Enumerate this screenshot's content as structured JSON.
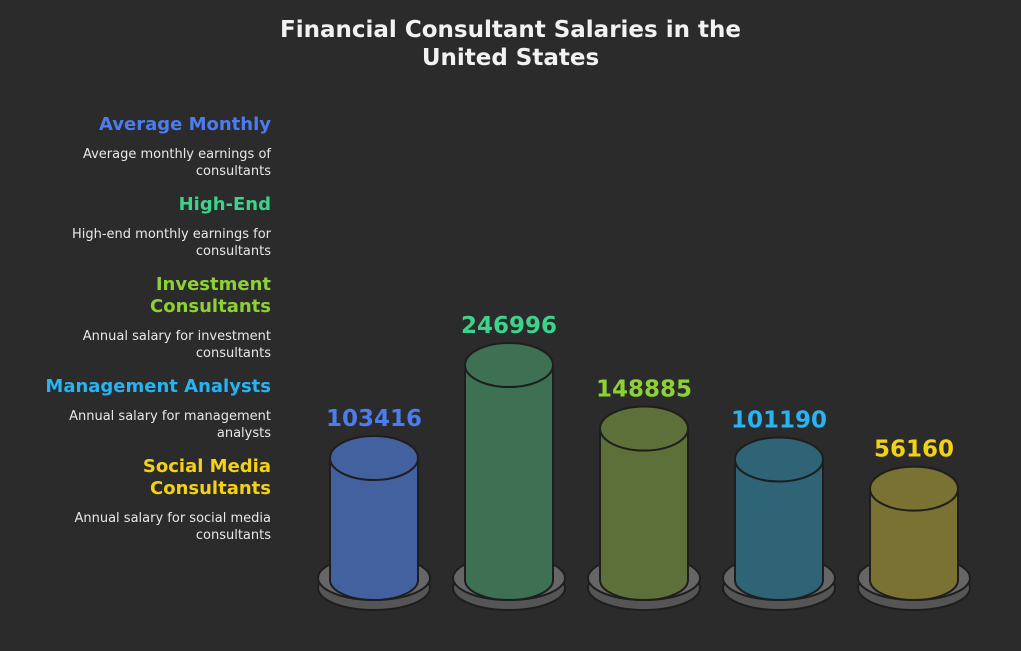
{
  "chart_data": {
    "type": "bar",
    "title_lines": [
      "Financial Consultant Salaries in the",
      "United States"
    ],
    "categories": [
      "Average Monthly",
      "High-End",
      "Investment Consultants",
      "Management Analysts",
      "Social Media Consultants"
    ],
    "values": [
      103416,
      246996,
      148885,
      101190,
      56160
    ],
    "value_labels": [
      "103416",
      "246996",
      "148885",
      "101190",
      "56160"
    ],
    "colors": [
      "#4c7cf0",
      "#3ed38c",
      "#8ed136",
      "#27b4f2",
      "#f3d215"
    ],
    "xlabel": "",
    "ylabel": "",
    "ylim": [
      0,
      246996
    ],
    "legend_position": "left"
  },
  "legend": [
    {
      "heading": "Average Monthly",
      "desc": "Average monthly earnings of consultants"
    },
    {
      "heading": "High-End",
      "desc": "High-end monthly earnings for consultants"
    },
    {
      "heading": "Investment Consultants",
      "desc": "Annual salary for investment consultants"
    },
    {
      "heading": "Management Analysts",
      "desc": "Annual salary for management analysts"
    },
    {
      "heading": "Social Media Consultants",
      "desc": "Annual salary for social media consultants"
    }
  ],
  "style": {
    "background": "#2b2b2b",
    "bar_fill": [
      "#43609f",
      "#3e7053",
      "#5e7039",
      "#2f6376",
      "#7a7232"
    ],
    "base_fill": "#4d4d4d"
  }
}
